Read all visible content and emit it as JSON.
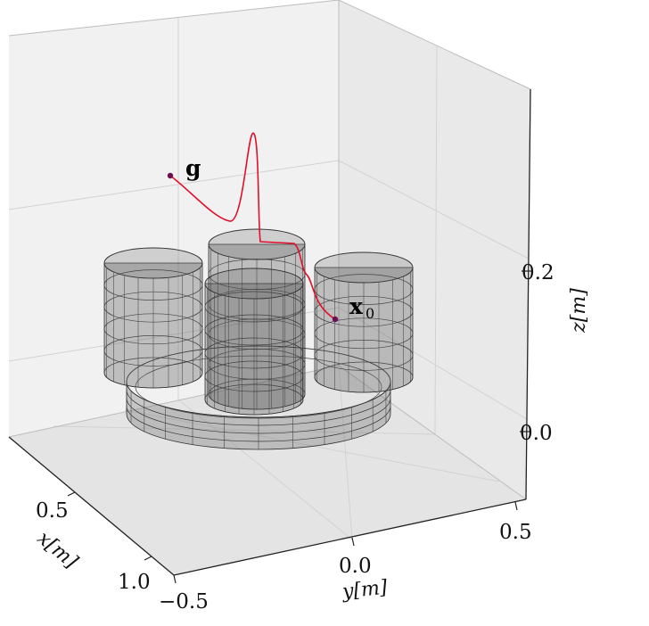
{
  "chart_data": {
    "type": "line",
    "title": "",
    "projection": "3d",
    "axes": {
      "x": {
        "label": "x[m]",
        "ticks": [
          "0.5",
          "1.0"
        ]
      },
      "y": {
        "label": "y[m]",
        "ticks": [
          "−0.5",
          "0.0",
          "0.5"
        ]
      },
      "z": {
        "label": "z[m]",
        "ticks": [
          "0.0",
          "0.2"
        ]
      }
    },
    "grid": true,
    "panes_color": "#ececec",
    "series": [
      {
        "style": "line",
        "color": "#e0102a"
      }
    ],
    "annotations": [
      {
        "text": "g",
        "marker_color": "#6a0f55"
      },
      {
        "text": "x",
        "subscript": "0",
        "marker_color": "#6a0f55"
      }
    ],
    "obstacles": {
      "cylinders": 4,
      "rings": 1,
      "color": "#555555"
    }
  }
}
